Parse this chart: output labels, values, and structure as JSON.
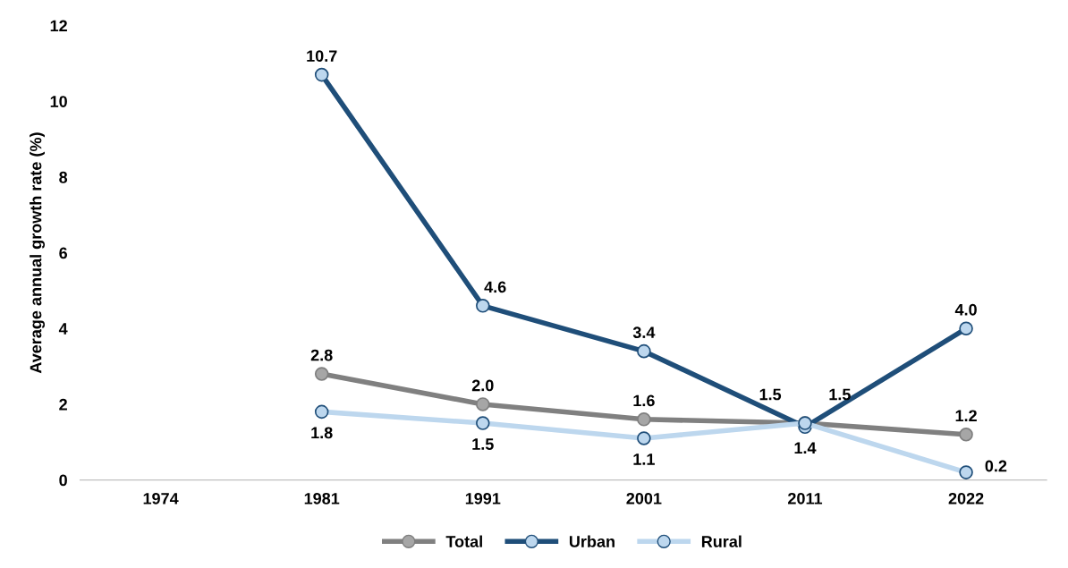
{
  "chart_data": {
    "type": "line",
    "ylabel": "Average annual growth rate (%)",
    "categories": [
      "1974",
      "1981",
      "1991",
      "2001",
      "2011",
      "2022"
    ],
    "series": [
      {
        "name": "Total",
        "color": "#808080",
        "values": [
          null,
          2.8,
          2.0,
          1.6,
          1.5,
          1.2
        ],
        "value_labels": [
          null,
          "2.8",
          "2.0",
          "1.6",
          "1.5",
          "1.2"
        ]
      },
      {
        "name": "Urban",
        "color": "#1f4e79",
        "values": [
          null,
          10.7,
          4.6,
          3.4,
          1.4,
          4.0
        ],
        "value_labels": [
          null,
          "10.7",
          "4.6",
          "3.4",
          "1.4",
          "4.0"
        ]
      },
      {
        "name": "Rural",
        "color": "#bdd7ee",
        "values": [
          null,
          1.8,
          1.5,
          1.1,
          1.5,
          0.2
        ],
        "value_labels": [
          null,
          "1.8",
          "1.5",
          "1.1",
          "1.5",
          "0.2"
        ]
      }
    ],
    "ylim": [
      0,
      12
    ],
    "yticks": [
      0,
      2,
      4,
      6,
      8,
      10,
      12
    ],
    "grid": false,
    "legend": "bottom",
    "marker": "circle",
    "line_style": "solid"
  }
}
